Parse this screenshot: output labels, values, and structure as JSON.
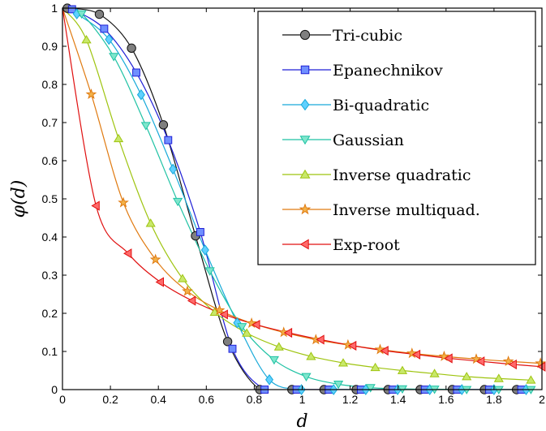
{
  "chart_data": {
    "type": "line",
    "xlabel": "d",
    "ylabel": "φ(d)",
    "xlim": [
      0,
      2
    ],
    "ylim": [
      0,
      1
    ],
    "x_ticks": [
      0,
      0.2,
      0.4,
      0.6,
      0.8,
      1,
      1.2,
      1.4,
      1.6,
      1.8,
      2
    ],
    "x_tick_labels": [
      "0",
      "0.2",
      "0.4",
      "0.6",
      "0.8",
      "1",
      "1.2",
      "1.4",
      "1.6",
      "1.8",
      "2"
    ],
    "y_ticks": [
      0,
      0.1,
      0.2,
      0.3,
      0.4,
      0.5,
      0.6,
      0.7,
      0.8,
      0.9,
      1
    ],
    "y_tick_labels": [
      "0",
      "0.1",
      "0.2",
      "0.3",
      "0.4",
      "0.5",
      "0.6",
      "0.7",
      "0.8",
      "0.9",
      "1"
    ],
    "grid": false,
    "legend_position": "top-right",
    "series": [
      {
        "name": "Tri-cubic",
        "color": "#111111",
        "marker_fill": "#7f7f7f",
        "marker": "circle",
        "x": [
          0.02,
          0.154,
          0.288,
          0.421,
          0.555,
          0.689,
          0.823,
          0.957,
          1.091,
          1.225,
          1.358,
          1.492,
          1.626,
          1.76,
          1.894
        ],
        "y": [
          0.9998,
          0.984,
          0.895,
          0.694,
          0.403,
          0.126,
          0,
          0,
          0,
          0,
          0,
          0,
          0,
          0,
          0
        ]
      },
      {
        "name": "Epanechnikov",
        "color": "#1f1fd6",
        "marker_fill": "#6f8fff",
        "marker": "square",
        "x": [
          0.04,
          0.174,
          0.308,
          0.441,
          0.575,
          0.709,
          0.843,
          0.977,
          1.111,
          1.245,
          1.378,
          1.512,
          1.646,
          1.78,
          1.914
        ],
        "y": [
          0.997,
          0.946,
          0.831,
          0.654,
          0.413,
          0.107,
          0,
          0,
          0,
          0,
          0,
          0,
          0,
          0,
          0
        ]
      },
      {
        "name": "Bi-quadratic",
        "color": "#17a9d9",
        "marker_fill": "#5fd0ff",
        "marker": "diamond",
        "x": [
          0.06,
          0.194,
          0.328,
          0.461,
          0.595,
          0.729,
          0.863,
          0.997,
          1.131,
          1.265,
          1.398,
          1.532,
          1.666,
          1.8,
          1.934
        ],
        "y": [
          0.985,
          0.918,
          0.773,
          0.578,
          0.366,
          0.175,
          0.026,
          0,
          0,
          0,
          0,
          0,
          0,
          0,
          0
        ]
      },
      {
        "name": "Gaussian",
        "color": "#1fc2a4",
        "marker_fill": "#7fe6cc",
        "marker": "triangle-down",
        "x": [
          0.08,
          0.214,
          0.348,
          0.481,
          0.615,
          0.749,
          0.883,
          1.017,
          1.151,
          1.285,
          1.418,
          1.552,
          1.686,
          1.82,
          1.954
        ],
        "y": [
          0.985,
          0.873,
          0.692,
          0.493,
          0.311,
          0.165,
          0.078,
          0.034,
          0.014,
          0.005,
          0.002,
          0.001,
          0,
          0,
          0
        ]
      },
      {
        "name": "Inverse quadratic",
        "color": "#9ec40f",
        "marker_fill": "#c8e86a",
        "marker": "triangle-up",
        "x": [
          0.1,
          0.234,
          0.368,
          0.501,
          0.635,
          0.769,
          0.903,
          1.037,
          1.171,
          1.305,
          1.418,
          1.552,
          1.686,
          1.82,
          1.954
        ],
        "y": [
          0.917,
          0.658,
          0.436,
          0.291,
          0.203,
          0.148,
          0.112,
          0.087,
          0.07,
          0.058,
          0.05,
          0.042,
          0.034,
          0.029,
          0.025
        ]
      },
      {
        "name": "Inverse multiquad.",
        "color": "#e07a10",
        "marker_fill": "#f2b24a",
        "marker": "star",
        "x": [
          0.12,
          0.254,
          0.388,
          0.521,
          0.655,
          0.789,
          0.923,
          1.057,
          1.191,
          1.325,
          1.458,
          1.592,
          1.726,
          1.86,
          1.994
        ],
        "y": [
          0.774,
          0.49,
          0.341,
          0.258,
          0.208,
          0.174,
          0.15,
          0.131,
          0.117,
          0.105,
          0.095,
          0.087,
          0.08,
          0.074,
          0.069
        ]
      },
      {
        "name": "Exp-root",
        "color": "#e01010",
        "marker_fill": "#ff6a6a",
        "marker": "triangle-left",
        "x": [
          0.14,
          0.274,
          0.408,
          0.541,
          0.675,
          0.809,
          0.943,
          1.077,
          1.211,
          1.345,
          1.478,
          1.612,
          1.746,
          1.88,
          2.0
        ],
        "y": [
          0.482,
          0.357,
          0.282,
          0.233,
          0.197,
          0.17,
          0.149,
          0.131,
          0.115,
          0.102,
          0.092,
          0.082,
          0.074,
          0.066,
          0.06
        ]
      }
    ]
  }
}
